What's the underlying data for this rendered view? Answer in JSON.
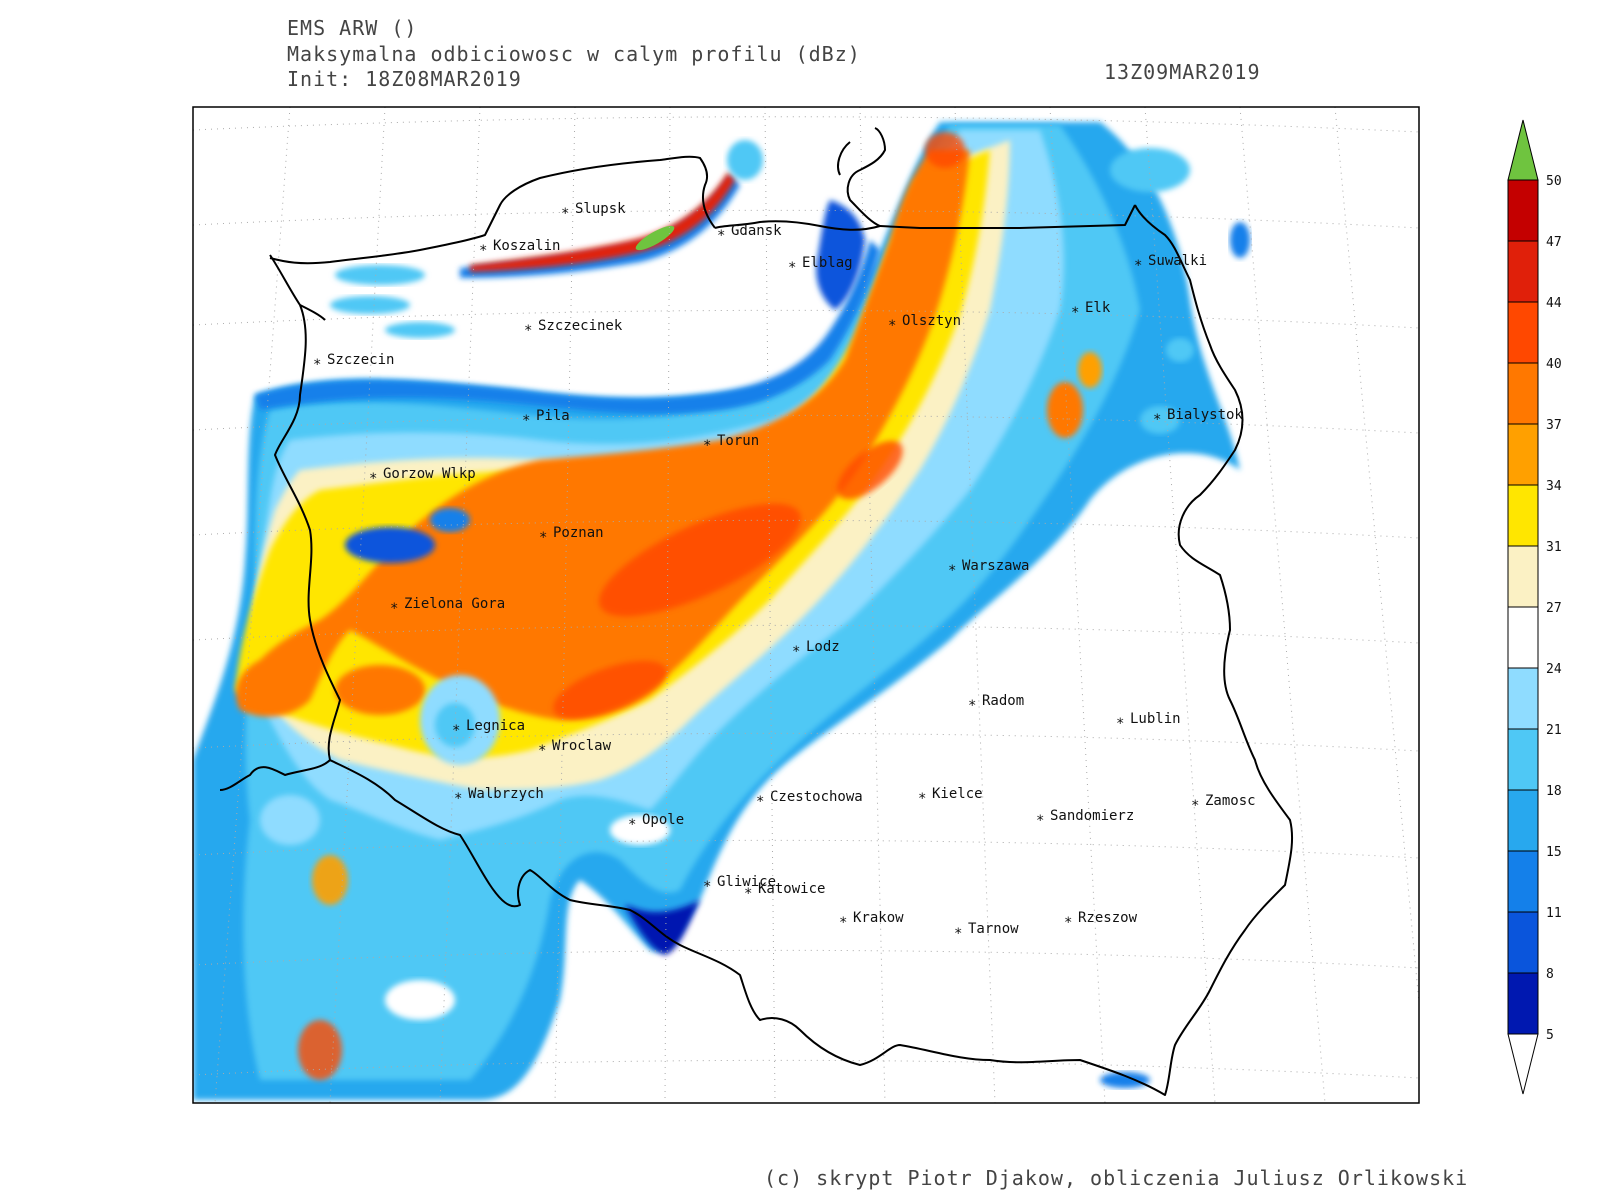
{
  "header": {
    "model": "EMS ARW ()",
    "field": "Maksymalna odbiciowosc w calym profilu (dBz)",
    "init": "Init: 18Z08MAR2019",
    "valid": "13Z09MAR2019"
  },
  "credit": "(c) skrypt Piotr Djakow, obliczenia Juliusz Orlikowski",
  "cities": [
    "Slupsk",
    "Koszalin",
    "Gdansk",
    "Elblag",
    "Suwalki",
    "Elk",
    "Szczecinek",
    "Olsztyn",
    "Szczecin",
    "Bialystok",
    "Pila",
    "Torun",
    "Gorzow Wlkp",
    "Poznan",
    "Warszawa",
    "Zielona Gora",
    "Lodz",
    "Radom",
    "Legnica",
    "Lublin",
    "Wroclaw",
    "Walbrzych",
    "Kielce",
    "Czestochowa",
    "Zamosc",
    "Opole",
    "Sandomierz",
    "Gliwice",
    "Katowice",
    "Krakow",
    "Tarnow",
    "Rzeszow"
  ],
  "colorbar": {
    "levels": [
      "50",
      "47",
      "44",
      "40",
      "37",
      "34",
      "31",
      "27",
      "24",
      "21",
      "18",
      "15",
      "11",
      "8",
      "5"
    ],
    "colors": [
      "#6fc43f",
      "#c40000",
      "#e0200a",
      "#ff4800",
      "#ff7800",
      "#ffa000",
      "#ffe600",
      "#fbf1c4",
      "#ffffff",
      "#8fdcff",
      "#4fc8f5",
      "#28a8ee",
      "#1480ea",
      "#0a55dc",
      "#0018b0"
    ],
    "bottom_color": "#ffffff"
  }
}
